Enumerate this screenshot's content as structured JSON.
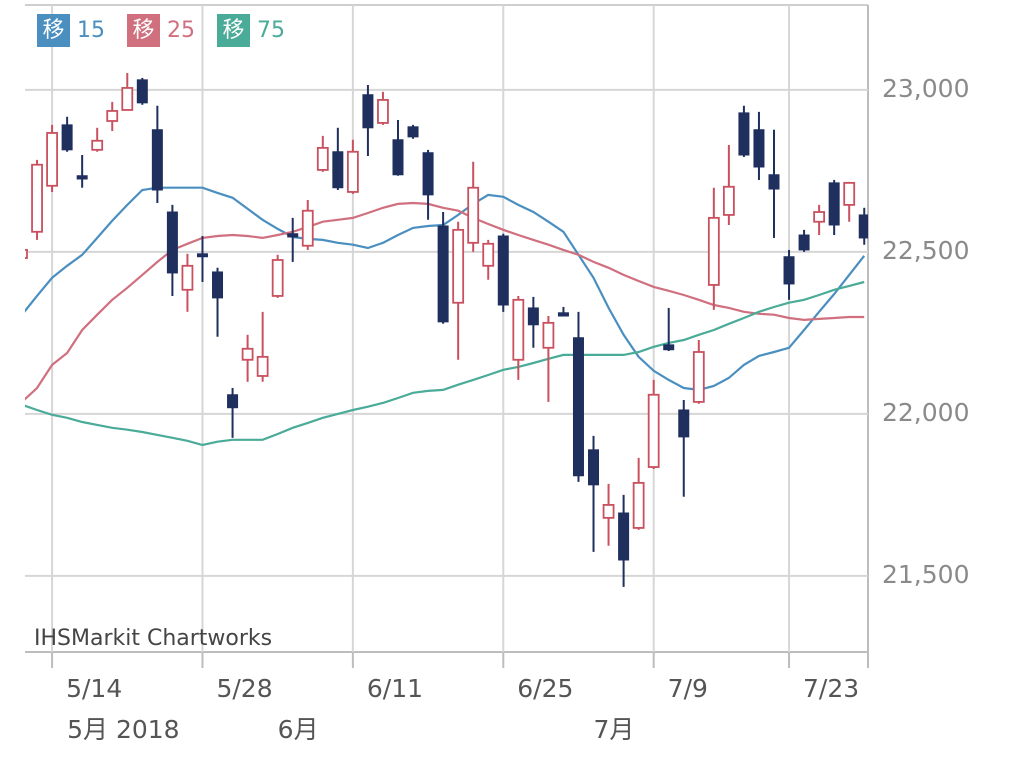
{
  "chart_data": {
    "type": "candlestick",
    "legend_tag": "移",
    "watermark": "IHSMarkit Chartworks",
    "categories": [
      null,
      null,
      "5/14",
      null,
      null,
      null,
      null,
      null,
      null,
      null,
      null,
      null,
      "5/28",
      null,
      null,
      null,
      null,
      null,
      null,
      null,
      null,
      null,
      "6/11",
      null,
      null,
      null,
      null,
      null,
      null,
      null,
      null,
      null,
      "6/25",
      null,
      null,
      null,
      null,
      null,
      null,
      null,
      null,
      null,
      "7/9",
      null,
      null,
      null,
      null,
      null,
      null,
      null,
      null,
      "7/23",
      null,
      null,
      null,
      null,
      null
    ],
    "month_labels": [
      null,
      null,
      null,
      "5月 2018",
      null,
      null,
      null,
      null,
      null,
      null,
      null,
      null,
      null,
      null,
      null,
      null,
      null,
      "6月",
      null,
      null,
      null,
      null,
      null,
      null,
      null,
      null,
      null,
      null,
      null,
      null,
      null,
      null,
      null,
      null,
      null,
      null,
      null,
      null,
      "7月",
      null,
      null,
      null,
      null,
      null,
      null,
      null,
      null,
      null,
      null,
      null,
      null,
      null,
      null,
      null,
      null,
      null,
      null
    ],
    "open": [
      22481,
      22562,
      22704,
      22892,
      22735,
      22815,
      22904,
      22938,
      23031,
      22877,
      22623,
      22383,
      22494,
      22438,
      22059,
      22167,
      22117,
      22364,
      22556,
      22519,
      22753,
      22809,
      22685,
      22985,
      22898,
      22846,
      22886,
      22806,
      22580,
      22343,
      22528,
      22457,
      22549,
      22167,
      22327,
      22204,
      22312,
      22235,
      21889,
      21679,
      21694,
      21648,
      21836,
      22213,
      22012,
      22037,
      22398,
      22614,
      22929,
      22877,
      22738,
      22485,
      22552,
      22593,
      22713,
      22645,
      22614
    ],
    "high": [
      22522,
      22784,
      22892,
      22917,
      22799,
      22883,
      22963,
      23052,
      23037,
      22951,
      22645,
      22494,
      22549,
      22451,
      22080,
      22244,
      22315,
      22491,
      22605,
      22660,
      22858,
      22883,
      22846,
      23015,
      22994,
      22907,
      22892,
      22815,
      22623,
      22593,
      22778,
      22537,
      22556,
      22364,
      22361,
      22302,
      22330,
      22315,
      21932,
      21784,
      21750,
      21864,
      22105,
      22327,
      22043,
      22228,
      22698,
      22830,
      22951,
      22932,
      22877,
      22506,
      22568,
      22645,
      22722,
      22716,
      22636
    ],
    "low": [
      22475,
      22537,
      22685,
      22809,
      22698,
      22809,
      22873,
      22938,
      22954,
      22651,
      22364,
      22315,
      22407,
      22238,
      21926,
      22099,
      22099,
      22358,
      22469,
      22506,
      22747,
      22691,
      22679,
      22796,
      22892,
      22735,
      22849,
      22599,
      22278,
      22167,
      22500,
      22414,
      22315,
      22105,
      22204,
      22037,
      22302,
      21790,
      21574,
      21593,
      21466,
      21642,
      21830,
      22194,
      21744,
      22031,
      22321,
      22583,
      22793,
      22722,
      22543,
      22352,
      22500,
      22552,
      22552,
      22593,
      22522
    ],
    "close": [
      22506,
      22769,
      22867,
      22815,
      22725,
      22843,
      22935,
      23006,
      22960,
      22691,
      22435,
      22457,
      22485,
      22358,
      22019,
      22201,
      22176,
      22475,
      22546,
      22627,
      22821,
      22698,
      22809,
      22883,
      22969,
      22738,
      22855,
      22676,
      22284,
      22568,
      22698,
      22525,
      22336,
      22352,
      22275,
      22281,
      22302,
      21809,
      21781,
      21719,
      21549,
      21787,
      22059,
      22198,
      21929,
      22191,
      22605,
      22701,
      22799,
      22762,
      22694,
      22401,
      22506,
      22623,
      22583,
      22713,
      22543
    ],
    "up_color": "#c9505e",
    "down_color": "#1f2f5e",
    "series": [
      {
        "name": "15",
        "color": "#4a8fc0",
        "values": [
          22306,
          22364,
          22420,
          22457,
          22491,
          22543,
          22596,
          22645,
          22691,
          22698,
          22698,
          22698,
          22698,
          22682,
          22667,
          22633,
          22599,
          22571,
          22546,
          22540,
          22537,
          22528,
          22522,
          22512,
          22528,
          22552,
          22574,
          22580,
          22583,
          22614,
          22648,
          22676,
          22670,
          22645,
          22623,
          22593,
          22562,
          22491,
          22420,
          22327,
          22244,
          22176,
          22133,
          22105,
          22080,
          22074,
          22086,
          22111,
          22151,
          22179,
          22191,
          22204,
          22259,
          22315,
          22370,
          22429,
          22488
        ]
      },
      {
        "name": "25",
        "color": "#d0707f",
        "values": [
          22037,
          22080,
          22151,
          22188,
          22259,
          22306,
          22352,
          22389,
          22429,
          22469,
          22506,
          22525,
          22543,
          22549,
          22552,
          22549,
          22543,
          22552,
          22562,
          22577,
          22593,
          22599,
          22605,
          22620,
          22636,
          22648,
          22651,
          22648,
          22636,
          22627,
          22605,
          22586,
          22568,
          22552,
          22537,
          22522,
          22506,
          22491,
          22469,
          22451,
          22429,
          22410,
          22392,
          22380,
          22367,
          22352,
          22336,
          22327,
          22315,
          22309,
          22306,
          22296,
          22290,
          22293,
          22296,
          22299,
          22299
        ]
      },
      {
        "name": "75",
        "color": "#4aab98",
        "values": [
          22028,
          22012,
          21997,
          21988,
          21975,
          21966,
          21957,
          21951,
          21944,
          21935,
          21926,
          21917,
          21904,
          21914,
          21920,
          21920,
          21920,
          21938,
          21957,
          21972,
          21988,
          22000,
          22012,
          22022,
          22034,
          22049,
          22065,
          22071,
          22074,
          22090,
          22105,
          22120,
          22136,
          22145,
          22157,
          22170,
          22182,
          22182,
          22182,
          22182,
          22182,
          22191,
          22207,
          22219,
          22228,
          22244,
          22259,
          22278,
          22296,
          22315,
          22330,
          22343,
          22352,
          22367,
          22383,
          22395,
          22407
        ]
      }
    ],
    "ylim": [
      21265,
      23262
    ],
    "yticks": [
      {
        "value": 21500,
        "label": "21,500"
      },
      {
        "value": 22000,
        "label": "22,000"
      },
      {
        "value": 22500,
        "label": "22,500"
      },
      {
        "value": 23000,
        "label": "23,000"
      }
    ],
    "grid": true
  }
}
